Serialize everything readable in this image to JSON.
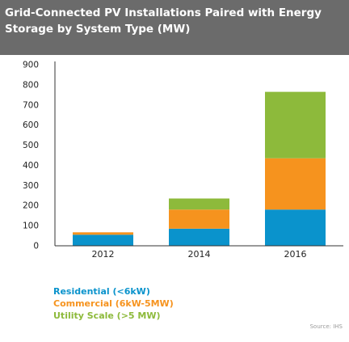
{
  "title": "Grid-Connected PV Installations Paired with Energy Storage by System Type (MW)",
  "source": "Source: IHS",
  "colors": {
    "residential": "#0a93cc",
    "commercial": "#f6931e",
    "utility": "#8dba3b"
  },
  "chart_data": {
    "type": "bar",
    "stacked": true,
    "title": "Grid-Connected PV Installations Paired with Energy Storage by System Type (MW)",
    "categories": [
      "2012",
      "2014",
      "2016"
    ],
    "series": [
      {
        "name": "Residential (<6kW)",
        "color": "#0a93cc",
        "values": [
          55,
          85,
          180
        ]
      },
      {
        "name": "Commercial (6kW-5MW)",
        "color": "#f6931e",
        "values": [
          12,
          95,
          255
        ]
      },
      {
        "name": "Utility Scale (>5 MW)",
        "color": "#8dba3b",
        "values": [
          0,
          55,
          330
        ]
      }
    ],
    "ylim": [
      0,
      900
    ],
    "yticks": [
      0,
      100,
      200,
      300,
      400,
      500,
      600,
      700,
      800,
      900
    ],
    "grid": false,
    "legend_position": "bottom-left"
  }
}
